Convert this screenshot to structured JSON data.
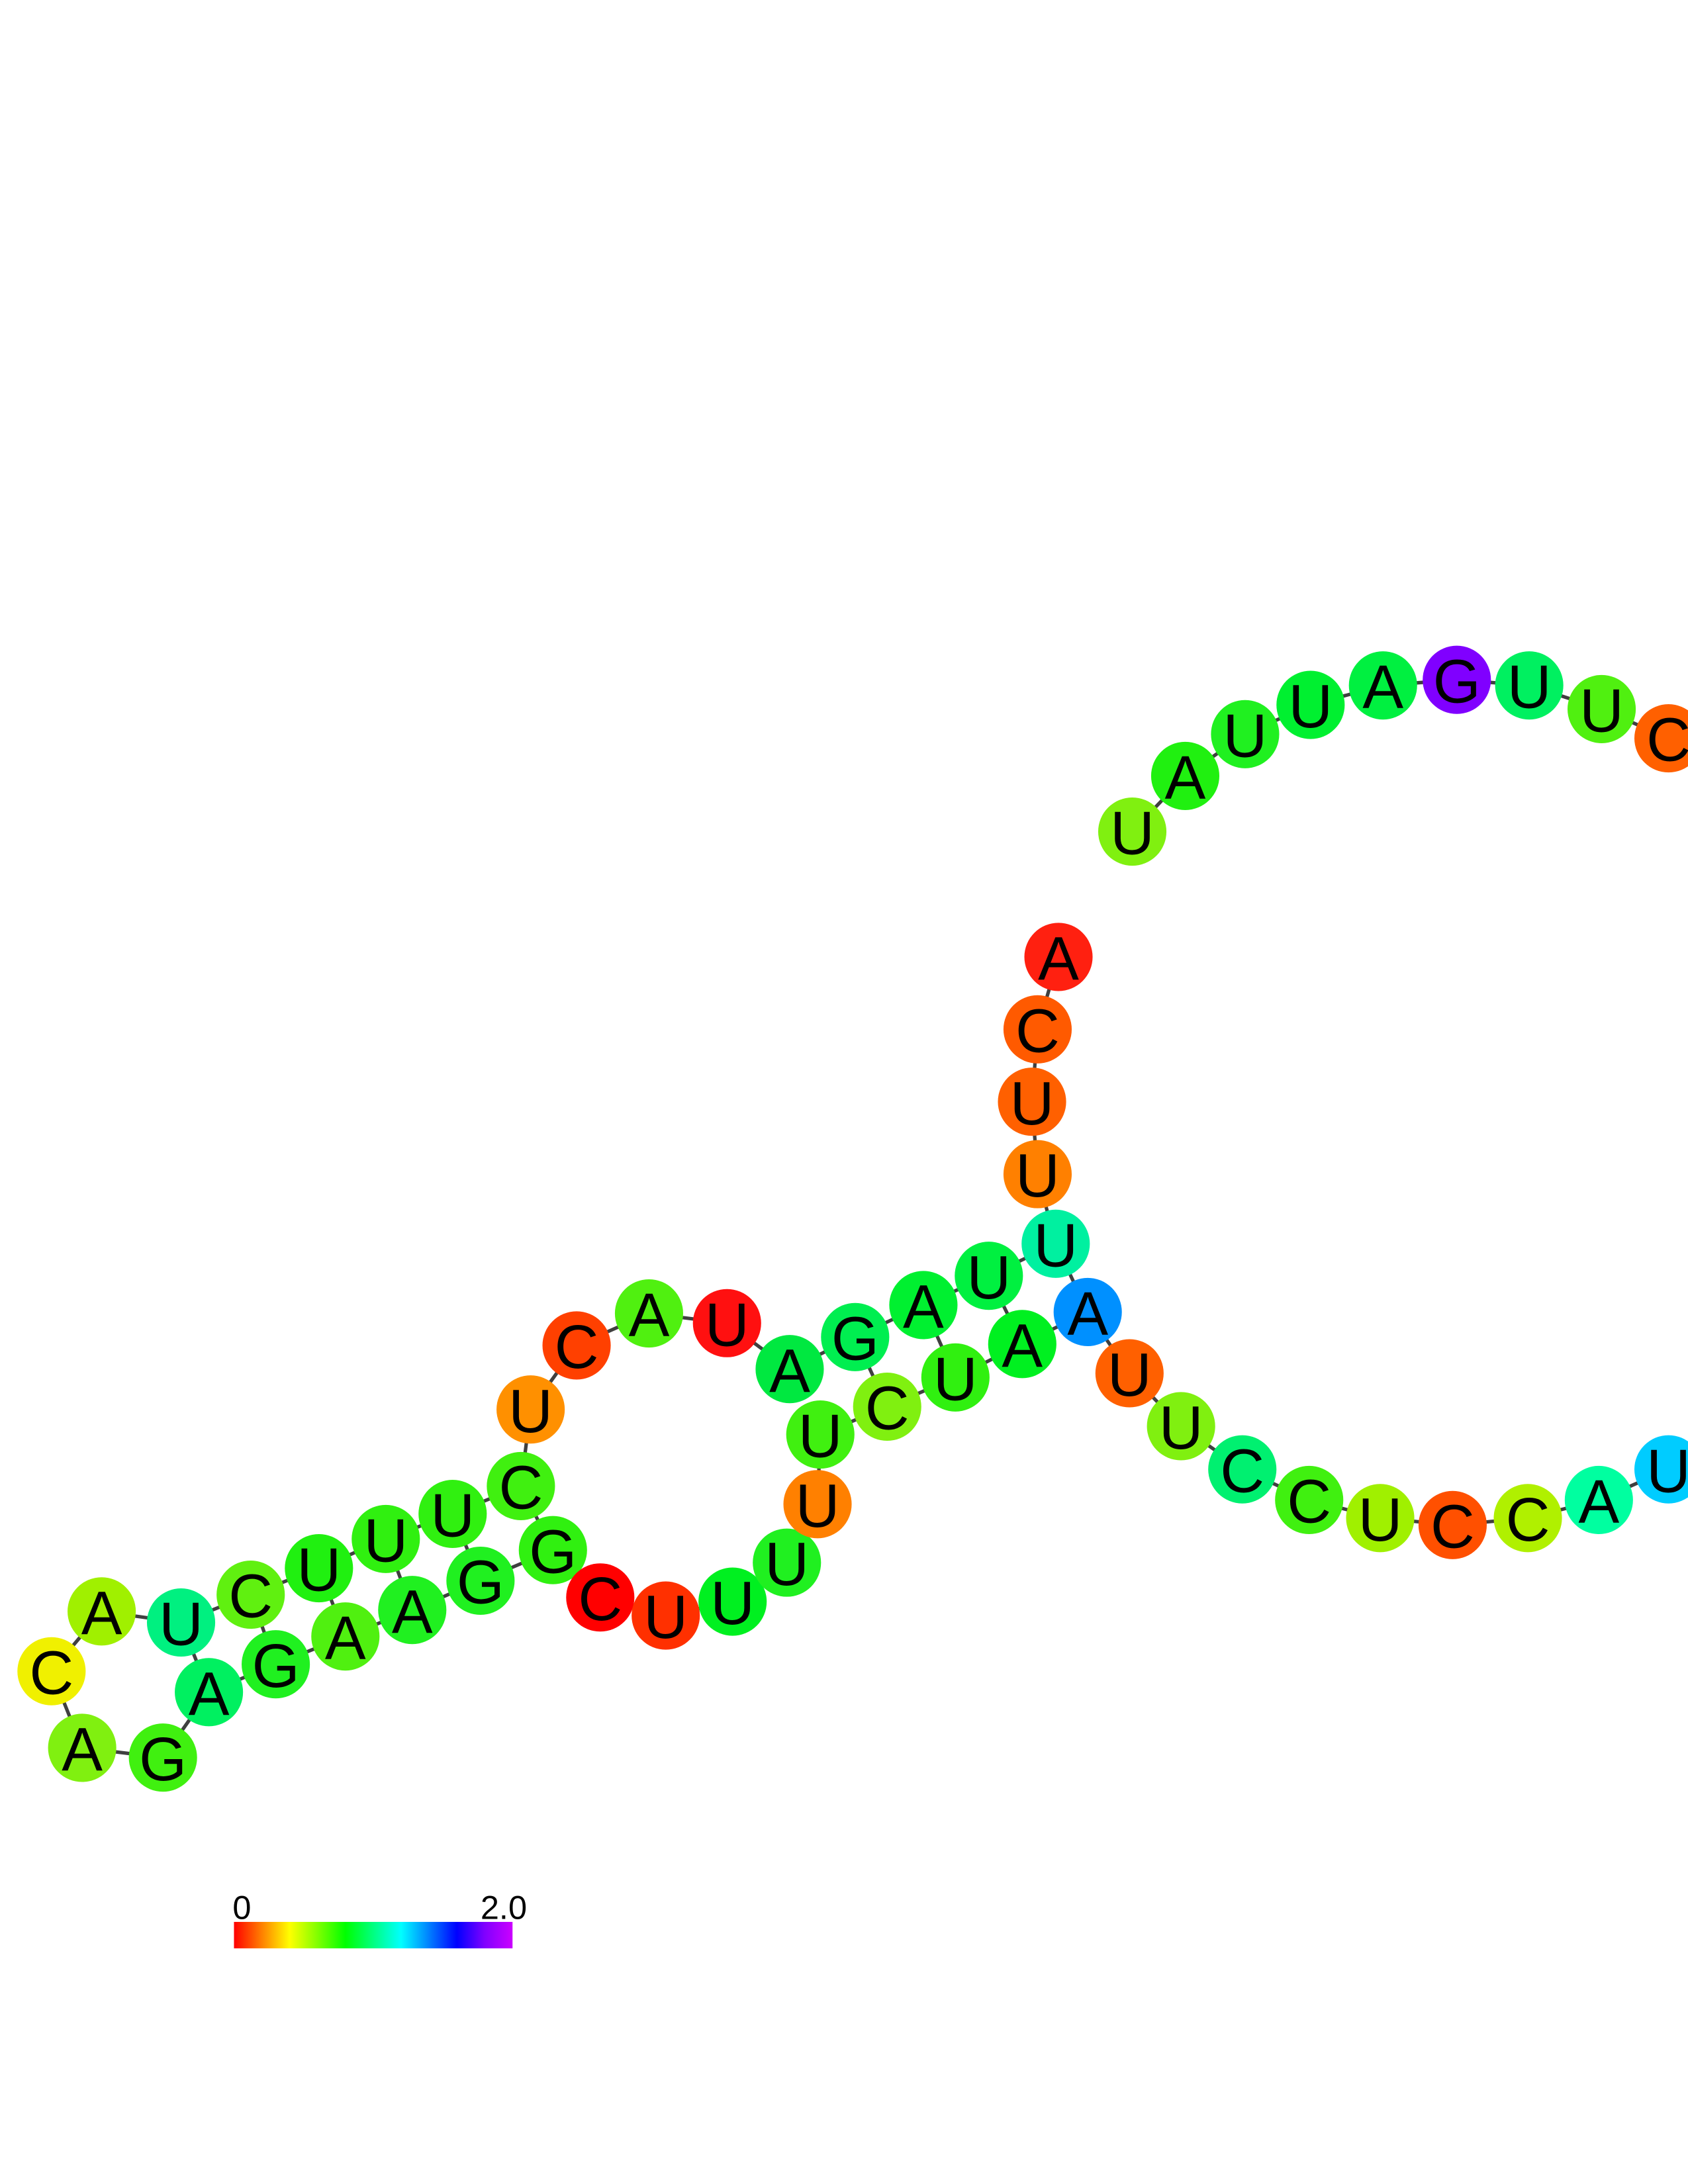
{
  "diagram": {
    "type": "rna-secondary-structure",
    "nucleotides": [
      {
        "base": "A",
        "color": "#ff2010"
      },
      {
        "base": "C",
        "color": "#ff5a00"
      },
      {
        "base": "U",
        "color": "#ff6000"
      },
      {
        "base": "U",
        "color": "#ff8000"
      },
      {
        "base": "U",
        "color": "#00f0a0"
      },
      {
        "base": "U",
        "color": "#00f040"
      },
      {
        "base": "A",
        "color": "#00f030"
      },
      {
        "base": "G",
        "color": "#00ee50"
      },
      {
        "base": "A",
        "color": "#00e840"
      },
      {
        "base": "U",
        "color": "#ff1010"
      },
      {
        "base": "A",
        "color": "#50f010"
      },
      {
        "base": "C",
        "color": "#ff4000"
      },
      {
        "base": "U",
        "color": "#ff9000"
      },
      {
        "base": "C",
        "color": "#40f010"
      },
      {
        "base": "U",
        "color": "#30f010"
      },
      {
        "base": "U",
        "color": "#30f010"
      },
      {
        "base": "U",
        "color": "#20f010"
      },
      {
        "base": "C",
        "color": "#60f010"
      },
      {
        "base": "U",
        "color": "#00f080"
      },
      {
        "base": "A",
        "color": "#a0f000"
      },
      {
        "base": "C",
        "color": "#f0f000"
      },
      {
        "base": "A",
        "color": "#80f010"
      },
      {
        "base": "G",
        "color": "#40f010"
      },
      {
        "base": "A",
        "color": "#00f060"
      },
      {
        "base": "G",
        "color": "#20f020"
      },
      {
        "base": "A",
        "color": "#50f010"
      },
      {
        "base": "A",
        "color": "#20f020"
      },
      {
        "base": "G",
        "color": "#20f020"
      },
      {
        "base": "G",
        "color": "#30f010"
      },
      {
        "base": "C",
        "color": "#ff0000"
      },
      {
        "base": "U",
        "color": "#ff3000"
      },
      {
        "base": "U",
        "color": "#00f020"
      },
      {
        "base": "U",
        "color": "#20f020"
      },
      {
        "base": "U",
        "color": "#ff8000"
      },
      {
        "base": "U",
        "color": "#40f010"
      },
      {
        "base": "C",
        "color": "#80f010"
      },
      {
        "base": "U",
        "color": "#30f010"
      },
      {
        "base": "A",
        "color": "#00f020"
      },
      {
        "base": "A",
        "color": "#0090ff"
      },
      {
        "base": "U",
        "color": "#ff6000"
      },
      {
        "base": "U",
        "color": "#80f010"
      },
      {
        "base": "C",
        "color": "#00f070"
      },
      {
        "base": "C",
        "color": "#40f010"
      },
      {
        "base": "U",
        "color": "#a0f000"
      },
      {
        "base": "C",
        "color": "#ff5000"
      },
      {
        "base": "C",
        "color": "#b0f000"
      },
      {
        "base": "A",
        "color": "#00ffa0"
      },
      {
        "base": "U",
        "color": "#00ccff"
      },
      {
        "base": "C",
        "color": "#ff6000"
      },
      {
        "base": "U",
        "color": "#50f010"
      },
      {
        "base": "U",
        "color": "#00f060"
      },
      {
        "base": "G",
        "color": "#8000ff"
      },
      {
        "base": "A",
        "color": "#00f040"
      },
      {
        "base": "U",
        "color": "#00f030"
      },
      {
        "base": "U",
        "color": "#20f020"
      },
      {
        "base": "A",
        "color": "#20f010"
      },
      {
        "base": "U",
        "color": "#80f010"
      }
    ]
  },
  "colorbar": {
    "min_label": "0",
    "max_label": "2.0",
    "colors": [
      "#ff0000",
      "#ff8000",
      "#ffff00",
      "#80ff00",
      "#00ff00",
      "#00ff80",
      "#00ffff",
      "#0080ff",
      "#0000ff",
      "#8000ff",
      "#cc00ff"
    ]
  }
}
